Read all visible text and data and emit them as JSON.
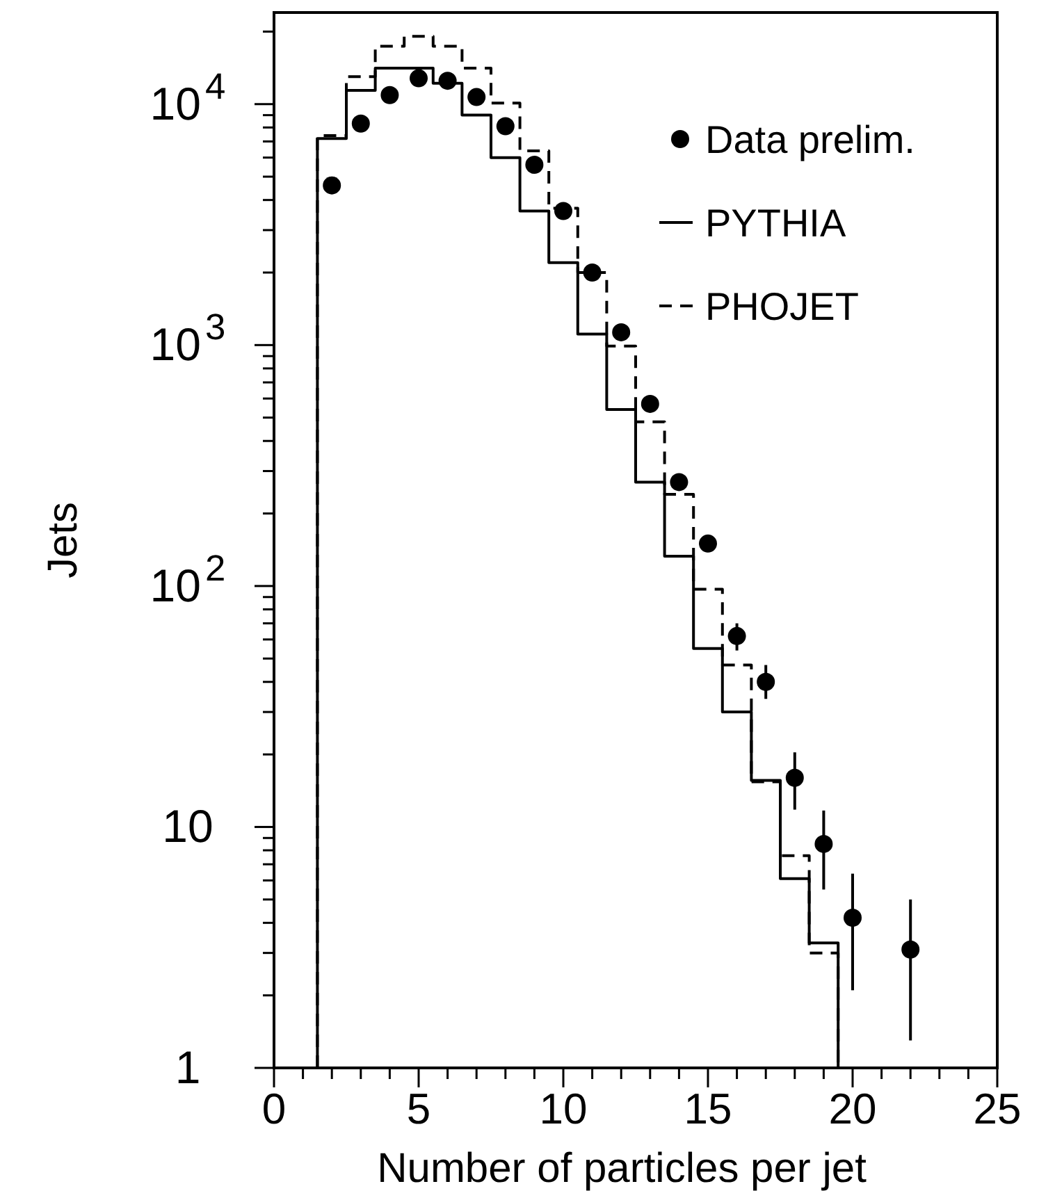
{
  "chart_data": {
    "type": "histogram",
    "xlabel": "Number of particles per jet",
    "ylabel": "Jets",
    "log": "y",
    "legend": "top right",
    "xlim": [
      0,
      25
    ],
    "ylim": [
      1,
      24000
    ],
    "xticks": [
      0,
      {
        "value": 1,
        "label": null
      },
      {
        "value": 2,
        "label": null
      },
      {
        "value": 3,
        "label": null
      },
      {
        "value": 4,
        "label": null
      },
      5,
      {
        "value": 6,
        "label": null
      },
      {
        "value": 7,
        "label": null
      },
      {
        "value": 8,
        "label": null
      },
      {
        "value": 9,
        "label": null
      },
      10,
      {
        "value": 11,
        "label": null
      },
      {
        "value": 12,
        "label": null
      },
      {
        "value": 13,
        "label": null
      },
      {
        "value": 14,
        "label": null
      },
      15,
      {
        "value": 16,
        "label": null
      },
      {
        "value": 17,
        "label": null
      },
      {
        "value": 18,
        "label": null
      },
      {
        "value": 19,
        "label": null
      },
      20,
      {
        "value": 21,
        "label": null
      },
      {
        "value": 22,
        "label": null
      },
      {
        "value": 23,
        "label": null
      },
      {
        "value": 24,
        "label": null
      },
      25
    ],
    "yticks": [
      1,
      {
        "value": 2,
        "label": null
      },
      {
        "value": 3,
        "label": null
      },
      {
        "value": 4,
        "label": null
      },
      {
        "value": 5,
        "label": null
      },
      {
        "value": 6,
        "label": null
      },
      {
        "value": 7,
        "label": null
      },
      {
        "value": 8,
        "label": null
      },
      {
        "value": 9,
        "label": null
      },
      10,
      {
        "value": 20,
        "label": null
      },
      {
        "value": 30,
        "label": null
      },
      {
        "value": 40,
        "label": null
      },
      {
        "value": 50,
        "label": null
      },
      {
        "value": 60,
        "label": null
      },
      {
        "value": 70,
        "label": null
      },
      {
        "value": 80,
        "label": null
      },
      {
        "value": 90,
        "label": null
      },
      {
        "value": 100,
        "label": "10$^{2}$"
      },
      {
        "value": 200,
        "label": null
      },
      {
        "value": 300,
        "label": null
      },
      {
        "value": 400,
        "label": null
      },
      {
        "value": 500,
        "label": null
      },
      {
        "value": 600,
        "label": null
      },
      {
        "value": 700,
        "label": null
      },
      {
        "value": 800,
        "label": null
      },
      {
        "value": 900,
        "label": null
      },
      {
        "value": 1000,
        "label": "10$^{3}$"
      },
      {
        "value": 2000,
        "label": null
      },
      {
        "value": 3000,
        "label": null
      },
      {
        "value": 4000,
        "label": null
      },
      {
        "value": 5000,
        "label": null
      },
      {
        "value": 6000,
        "label": null
      },
      {
        "value": 7000,
        "label": null
      },
      {
        "value": 8000,
        "label": null
      },
      {
        "value": 9000,
        "label": null
      },
      {
        "value": 10000,
        "label": "10$^{4}$"
      },
      {
        "value": 20000,
        "label": null
      }
    ],
    "bins": [
      1.5,
      2.5,
      3.5,
      4.5,
      5.5,
      6.5,
      7.5,
      8.5,
      9.5,
      10.5,
      11.5,
      12.5,
      13.5,
      14.5,
      15.5,
      16.5,
      17.5,
      18.5,
      19.5
    ],
    "series": [
      {
        "name": "Data prelim.",
        "type": "scatter",
        "marker": "circle",
        "color": "#000000",
        "x": [
          2,
          3,
          4,
          5,
          6,
          7,
          8,
          9,
          10,
          11,
          12,
          13,
          14,
          15,
          16,
          17,
          18,
          19,
          20,
          22
        ],
        "values": [
          4600,
          8300,
          10900,
          12800,
          12500,
          10700,
          8100,
          5600,
          3600,
          2000,
          1130,
          570,
          270,
          150,
          62,
          40,
          16,
          8.5,
          4.2,
          3.1
        ],
        "errors": [
          null,
          null,
          null,
          null,
          null,
          null,
          null,
          null,
          null,
          null,
          null,
          null,
          null,
          null,
          [
            54,
            70
          ],
          [
            34,
            47
          ],
          [
            11.8,
            20.4
          ],
          [
            5.5,
            11.7
          ],
          [
            2.1,
            6.4
          ],
          [
            1.3,
            5.0
          ]
        ]
      },
      {
        "name": "PYTHIA",
        "line_style": "solid",
        "color": "#000000",
        "values": [
          7200,
          11400,
          14100,
          14100,
          12200,
          9000,
          6000,
          3600,
          2200,
          1110,
          540,
          270,
          133,
          55,
          30,
          15.6,
          6.1,
          3.3
        ]
      },
      {
        "name": "PHOJET",
        "line_style": "dashed",
        "color": "#000000",
        "values": [
          7400,
          13000,
          17400,
          19100,
          17400,
          14100,
          10100,
          6400,
          3700,
          2000,
          990,
          480,
          240,
          97,
          47,
          15.4,
          7.6,
          3.0
        ]
      }
    ]
  }
}
